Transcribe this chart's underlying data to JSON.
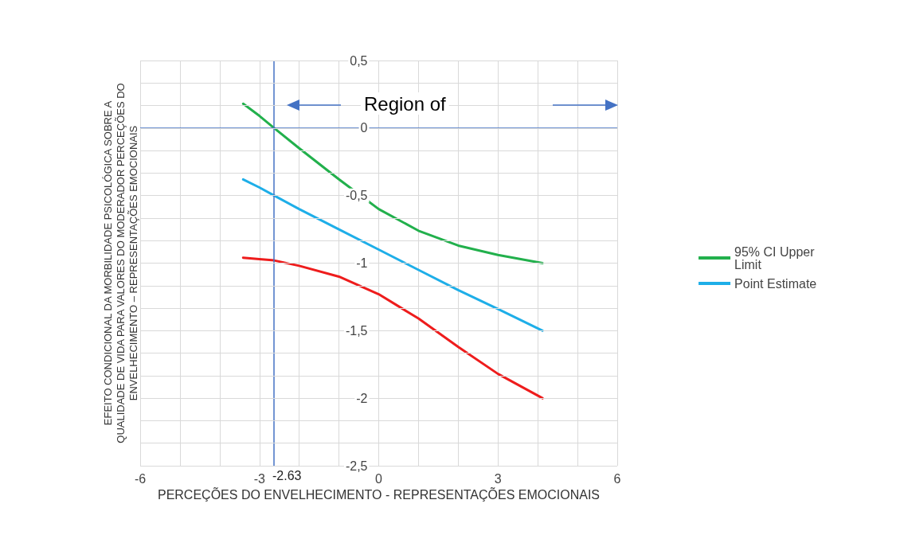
{
  "chart_data": {
    "type": "line",
    "xlabel": "PERCEÇÕES DO ENVELHECIMENTO - REPRESENTAÇÕES EMOCIONAIS",
    "ylabel": "EFEITO CONDICIONAL DA MORBILIDADE PSICOLÓGICA SOBRE A QUALIDADE DE VIDA PARA VALORES DO MODERADOR PERCEÇÕES DO ENVELHECIMENTO – REPRESENTAÇÕES EMOCIONAIS",
    "x": [
      -3.41,
      -3,
      -2.63,
      -2,
      -1,
      0,
      1,
      2,
      3,
      4.12
    ],
    "series": [
      {
        "name": "95% CI Upper Limit",
        "color": "#22b04c",
        "values": [
          0.18,
          0.09,
          0,
          -0.15,
          -0.38,
          -0.6,
          -0.76,
          -0.87,
          -0.94,
          -1.0
        ]
      },
      {
        "name": "Point Estimate",
        "color": "#1eaee8",
        "values": [
          -0.38,
          -0.44,
          -0.5,
          -0.6,
          -0.75,
          -0.9,
          -1.05,
          -1.2,
          -1.34,
          -1.5
        ]
      },
      {
        "color": "#ee1c1c",
        "values": [
          -0.96,
          -0.97,
          -0.98,
          -1.02,
          -1.1,
          -1.23,
          -1.41,
          -1.62,
          -1.82,
          -2.0
        ]
      }
    ],
    "xlim": [
      -6,
      6
    ],
    "xticks": [
      -6,
      -3,
      0,
      3,
      6
    ],
    "ylim": [
      -2.5,
      0.5
    ],
    "yticks": [
      {
        "value": -2.5,
        "label": "-2,5"
      },
      -2,
      {
        "value": -1.5,
        "label": "-1,5"
      },
      -1,
      {
        "value": -0.5,
        "label": "-0,5"
      },
      0,
      {
        "value": 0.5,
        "label": "0,5"
      }
    ],
    "ref_lines": [
      {
        "axis": "x",
        "value": -2.63,
        "label": "-2.63",
        "color": "#4472c4"
      },
      {
        "axis": "y",
        "value": 0,
        "color": "#4472c4"
      }
    ],
    "annotations": [
      "Region of"
    ],
    "grid": true,
    "legend": "right",
    "marker": "none",
    "line_style": "solid"
  }
}
